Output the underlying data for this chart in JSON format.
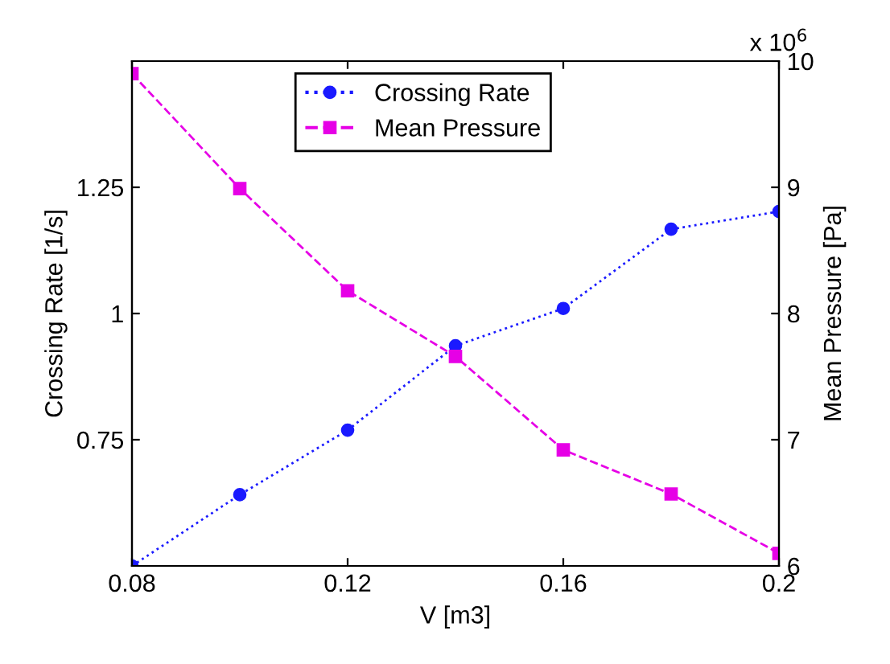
{
  "chart_data": {
    "type": "line",
    "xlabel": "V [m3]",
    "ylabel": "Crossing Rate [1/s]",
    "y2label": "Mean Pressure [Pa]",
    "x": [
      0.08,
      0.1,
      0.12,
      0.14,
      0.16,
      0.18,
      0.2
    ],
    "series": [
      {
        "name": "Crossing Rate",
        "color": "#1a1aff",
        "marker": "circle",
        "line_style": "dotted",
        "values": [
          0.5,
          0.641,
          0.769,
          0.936,
          1.01,
          1.167,
          1.202
        ]
      },
      {
        "name": "Mean Pressure",
        "color": "#e600e6",
        "marker": "square",
        "line_style": "dashed",
        "axis": "y2",
        "values": [
          9.9,
          8.99,
          8.18,
          7.66,
          6.92,
          6.57,
          6.1
        ]
      }
    ],
    "xlim": [
      0.08,
      0.2
    ],
    "xticks": [
      0.08,
      0.12,
      0.16,
      0.2
    ],
    "ylim": [
      0.5,
      1.5
    ],
    "yticks": [
      0.75,
      1,
      1.25
    ],
    "y2lim": [
      6,
      10
    ],
    "y2ticks": [
      6,
      7,
      8,
      9,
      10
    ],
    "annotations": [
      "x 10$^{6}$"
    ],
    "grid": false,
    "legend": "top"
  }
}
